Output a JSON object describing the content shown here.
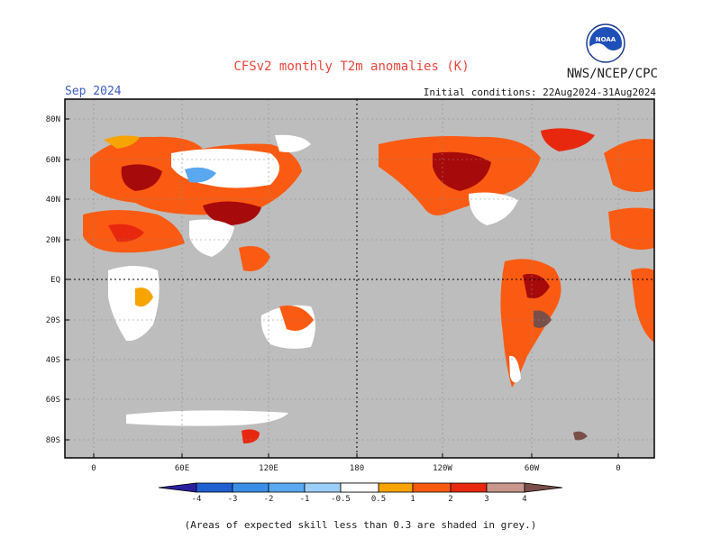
{
  "header": {
    "title": "CFSv2 monthly T2m anomalies (K)",
    "agency": "NWS/NCEP/CPC",
    "month": "Sep 2024",
    "initial_conditions": "Initial conditions: 22Aug2024-31Aug2024",
    "logo_text": "NOAA"
  },
  "map": {
    "projection": "equirectangular, dateline-centered",
    "lat_labels": [
      "80N",
      "60N",
      "40N",
      "20N",
      "EQ",
      "20S",
      "40S",
      "60S",
      "80S"
    ],
    "lon_labels": [
      "0",
      "60E",
      "120E",
      "180",
      "120W",
      "60W",
      "0"
    ],
    "background_color": "#bdbdbd",
    "low_skill_color": "#bdbdbd"
  },
  "legend": {
    "labels": [
      "-4",
      "-3",
      "-2",
      "-1",
      "-0.5",
      "0.5",
      "1",
      "2",
      "3",
      "4"
    ],
    "colors": [
      "#2b1fa0",
      "#1f5fd0",
      "#3b8ee8",
      "#5aa8f0",
      "#9ccff8",
      "#ffffff",
      "#f7a400",
      "#fb5a12",
      "#e8280e",
      "#a70a0a",
      "#c8968a",
      "#7a4f48"
    ]
  },
  "footnote": "(Areas of expected skill less than 0.3 are shaded in grey.)"
}
